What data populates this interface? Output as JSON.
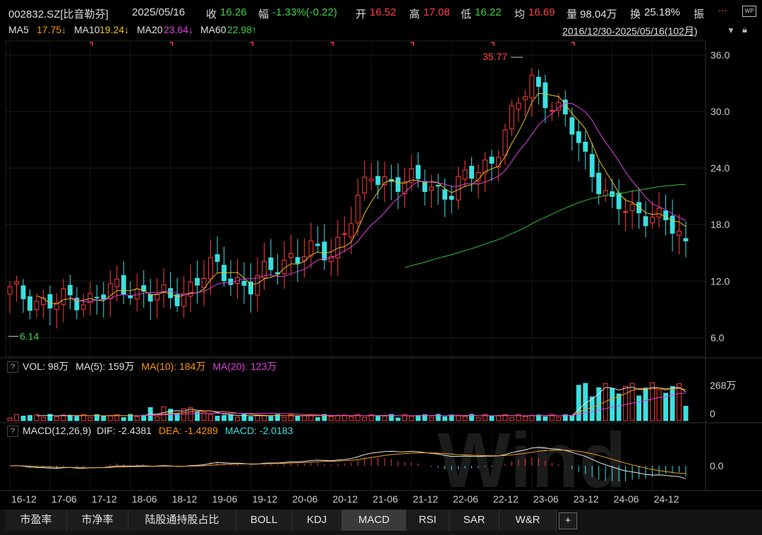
{
  "header": {
    "code_name": "002832.SZ[比音勒芬]",
    "date": "2025/05/16",
    "close_label": "收",
    "close_value": "16.26",
    "change_label": "幅",
    "change_value": "-1.33%(-0.22)",
    "open_label": "开",
    "open_value": "16.52",
    "high_label": "高",
    "high_value": "17.08",
    "low_label": "低",
    "low_value": "16.22",
    "avg_label": "均",
    "avg_value": "16.69",
    "vol_label": "量",
    "vol_value": "98.04万",
    "turnover_label": "换",
    "turnover_value": "25.18%",
    "amp_label": "振",
    "more": "...",
    "wp_icon": "WP"
  },
  "ma_bar": {
    "ma5_label": "MA5",
    "ma5_value": "17.75↓",
    "ma10_label": "MA10",
    "ma10_value": "19.24↓",
    "ma20_label": "MA20",
    "ma20_value": "23.64↓",
    "ma60_label": "MA60",
    "ma60_value": "22.98↑",
    "range": "2016/12/30-2025/05/16(102月)"
  },
  "vol_panel": {
    "q": "?",
    "vol_text": "VOL: 98万",
    "ma5_text": "MA(5): 159万",
    "ma10_text": "MA(10): 184万",
    "ma20_text": "MA(20): 123万",
    "axis_top": "268万",
    "axis_zero": "0"
  },
  "macd_panel": {
    "q": "?",
    "title": "MACD(12,26,9)",
    "dif_text": "DIF: -2.4381",
    "dea_text": "DEA: -1.4289",
    "macd_text": "MACD: -2.0183",
    "axis_zero": "0.0"
  },
  "price_axis": [
    "36.0",
    "30.0",
    "24.0",
    "18.0",
    "12.0",
    "6.0"
  ],
  "annotations": {
    "high_label": "35.77",
    "low_label": "6.14"
  },
  "x_ticks": [
    "16-12",
    "17-06",
    "17-12",
    "18-06",
    "18-12",
    "19-06",
    "19-12",
    "20-06",
    "20-12",
    "21-06",
    "21-12",
    "22-06",
    "22-12",
    "23-06",
    "23-12",
    "24-06",
    "24-12"
  ],
  "watermark": "Wind",
  "tabs": [
    "市盈率",
    "市净率",
    "陆股通持股占比",
    "BOLL",
    "KDJ",
    "MACD",
    "RSI",
    "SAR",
    "W&R",
    "+"
  ],
  "active_tab": "MACD",
  "colors": {
    "up": "#ff3b3b",
    "down": "#3ce0e0",
    "ma5": "#ffffff",
    "ma10": "#e8c020",
    "ma20": "#e040e0",
    "ma60": "#30c030",
    "accent_green": "#3ed13e"
  },
  "chart_data": {
    "type": "candlestick",
    "period": "monthly",
    "x_range": [
      "2016/12/30",
      "2025/05/16"
    ],
    "ylim": [
      4.0,
      37.5
    ],
    "grid": true,
    "last_bar": {
      "open": 16.52,
      "high": 17.08,
      "low": 16.22,
      "close": 16.26
    },
    "price_anchors": [
      {
        "date": "2016-12",
        "close": 10.8
      },
      {
        "date": "2017-06",
        "close": 9.6
      },
      {
        "date": "2017-12",
        "close": 10.3
      },
      {
        "date": "2018-06",
        "close": 11.3
      },
      {
        "date": "2018-12",
        "close": 9.9
      },
      {
        "date": "2019-06",
        "close": 13.3
      },
      {
        "date": "2019-12",
        "close": 11.5
      },
      {
        "date": "2020-06",
        "close": 14.8
      },
      {
        "date": "2020-12",
        "close": 15.0
      },
      {
        "date": "2021-06",
        "close": 23.0
      },
      {
        "date": "2021-12",
        "close": 22.5
      },
      {
        "date": "2022-06",
        "close": 21.5
      },
      {
        "date": "2022-12",
        "close": 25.0
      },
      {
        "date": "2023-06",
        "close": 33.5
      },
      {
        "date": "2023-12",
        "close": 28.0
      },
      {
        "date": "2024-06",
        "close": 19.8
      },
      {
        "date": "2024-12",
        "close": 19.2
      },
      {
        "date": "2025-05",
        "close": 16.26
      }
    ],
    "high_point": 35.77,
    "low_point": 6.14,
    "series": [
      {
        "name": "MA5",
        "last": 17.75
      },
      {
        "name": "MA10",
        "last": 19.24
      },
      {
        "name": "MA20",
        "last": 23.64
      },
      {
        "name": "MA60",
        "last": 22.98
      }
    ],
    "volume": {
      "last": 98,
      "ma5": 159,
      "ma10": 184,
      "ma20": 123,
      "top": 268
    },
    "macd": {
      "dif": -2.4381,
      "dea": -1.4289,
      "macd": -2.0183
    }
  }
}
